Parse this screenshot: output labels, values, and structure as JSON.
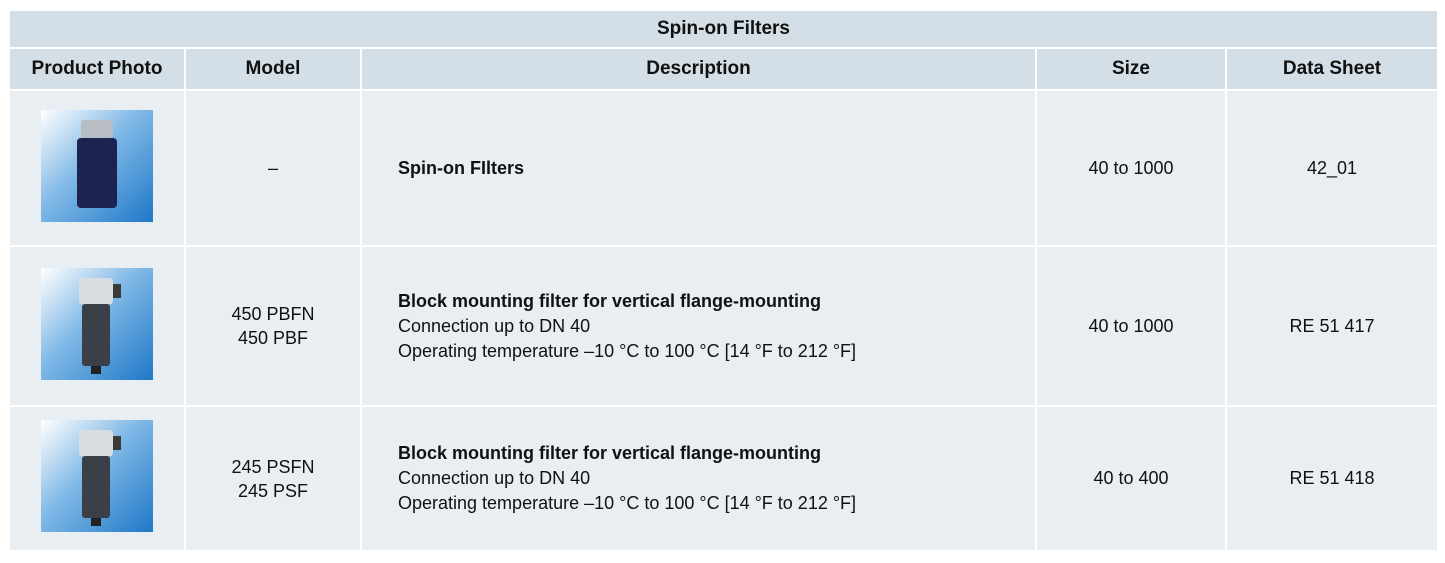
{
  "table": {
    "title": "Spin-on Filters",
    "headers": [
      "Product Photo",
      "Model",
      "Description",
      "Size",
      "Data Sheet"
    ],
    "rows": [
      {
        "model": [
          "–"
        ],
        "description": {
          "title": "Spin-on FIlters"
        },
        "size": "40 to 1000",
        "data_sheet": "42_01"
      },
      {
        "model": [
          "450 PBFN",
          "450 PBF"
        ],
        "description": {
          "title": "Block mounting filter for vertical flange-mounting",
          "lines": [
            "Connection up to DN 40",
            "Operating temperature –10 °C to 100 °C [14 °F to 212 °F]"
          ]
        },
        "size": "40 to 1000",
        "data_sheet": "RE 51 417"
      },
      {
        "model": [
          "245 PSFN",
          "245 PSF"
        ],
        "description": {
          "title": "Block mounting filter for vertical flange-mounting",
          "lines": [
            "Connection up to DN 40",
            "Operating temperature –10 °C to 100 °C [14 °F to 212 °F]"
          ]
        },
        "size": "40 to 400",
        "data_sheet": "RE 51 418"
      }
    ]
  }
}
